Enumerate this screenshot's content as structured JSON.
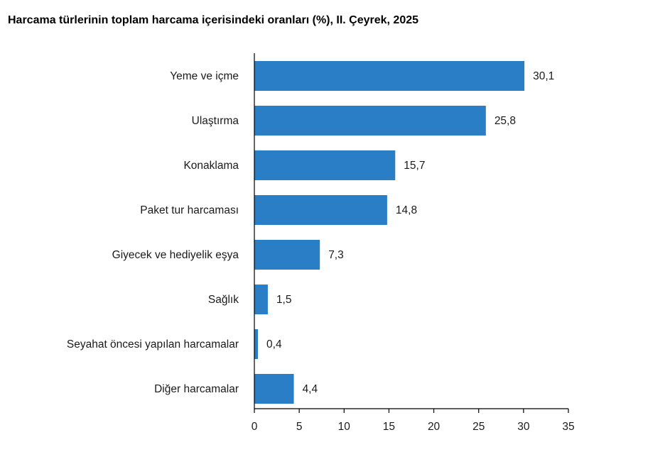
{
  "chart_data": {
    "type": "bar",
    "orientation": "horizontal",
    "title": "Harcama türlerinin toplam harcama içerisindeki oranları (%), II. Çeyrek, 2025",
    "categories": [
      "Yeme ve içme",
      "Ulaştırma",
      "Konaklama",
      "Paket tur harcaması",
      "Giyecek ve hediyelik eşya",
      "Sağlık",
      "Seyahat öncesi yapılan harcamalar",
      "Diğer harcamalar"
    ],
    "values": [
      30.1,
      25.8,
      15.7,
      14.8,
      7.3,
      1.5,
      0.4,
      4.4
    ],
    "value_labels": [
      "30,1",
      "25,8",
      "15,7",
      "14,8",
      "7,3",
      "1,5",
      "0,4",
      "4,4"
    ],
    "xlim": [
      0,
      35
    ],
    "xticks": [
      0,
      5,
      10,
      15,
      20,
      25,
      30,
      35
    ],
    "xlabel": "",
    "ylabel": "",
    "grid": false,
    "legend": false,
    "bar_color": "#2a7ec6"
  }
}
